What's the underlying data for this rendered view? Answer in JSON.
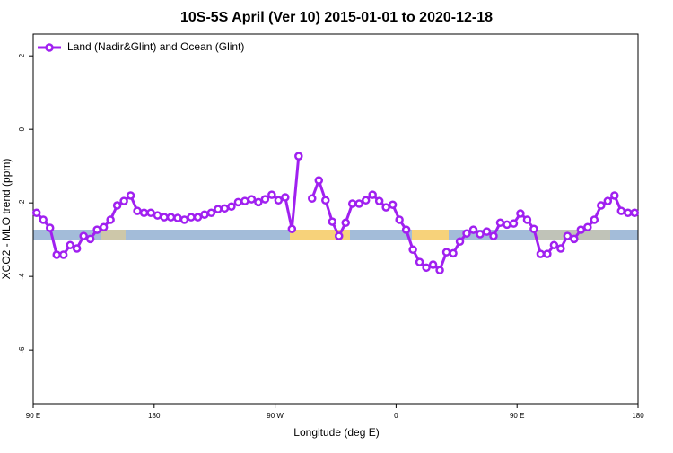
{
  "chart_data": {
    "type": "line",
    "title": "10S-5S April (Ver 10)   2015-01-01 to 2020-12-18",
    "x_label": "Longitude (deg E)",
    "y_label": "XCO2 - MLO trend (ppm)",
    "xlim": [
      90,
      540
    ],
    "ylim": [
      -7.46,
      2.59
    ],
    "xticks": [
      {
        "value": 90,
        "label": "90 E"
      },
      180,
      {
        "value": 270,
        "label": "90 W"
      },
      {
        "value": 360,
        "label": "0"
      },
      {
        "value": 450,
        "label": "90 E"
      },
      {
        "value": 540,
        "label": "180"
      }
    ],
    "yticks": [
      2,
      0,
      -2,
      -4,
      -6
    ],
    "legend": "top-left",
    "x": [
      92.5,
      97.5,
      102.5,
      107.5,
      112.5,
      117.5,
      122.5,
      127.5,
      132.5,
      137.5,
      142.5,
      147.5,
      152.5,
      157.5,
      162.5,
      167.5,
      172.5,
      177.5,
      182.5,
      187.5,
      192.5,
      197.5,
      202.5,
      207.5,
      212.5,
      217.5,
      222.5,
      227.5,
      232.5,
      237.5,
      242.5,
      247.5,
      252.5,
      257.5,
      262.5,
      267.5,
      272.5,
      277.5,
      282.5,
      287.5,
      292.5,
      297.5,
      302.5,
      307.5,
      312.5,
      317.5,
      322.5,
      327.5,
      332.5,
      337.5,
      342.5,
      347.5,
      352.5,
      357.5,
      362.5,
      367.5,
      372.5,
      377.5,
      382.5,
      387.5,
      392.5,
      397.5,
      402.5,
      407.5,
      412.5,
      417.5,
      422.5,
      427.5,
      432.5,
      437.5,
      442.5,
      447.5,
      452.5,
      457.5,
      462.5,
      467.5,
      472.5,
      477.5,
      482.5,
      487.5,
      492.5,
      497.5,
      502.5,
      507.5,
      512.5,
      517.5,
      522.5,
      527.5,
      532.5,
      537.5
    ],
    "series": [
      {
        "name": "Land (Nadir&Glint) and Ocean (Glint)",
        "color": "#a020f0",
        "values": [
          -2.27,
          -2.46,
          -2.68,
          -3.41,
          -3.41,
          -3.15,
          -3.24,
          -2.9,
          -2.98,
          -2.73,
          -2.66,
          -2.46,
          -2.07,
          -1.95,
          -1.8,
          -2.22,
          -2.27,
          -2.27,
          -2.34,
          -2.39,
          -2.39,
          -2.41,
          -2.46,
          -2.39,
          -2.39,
          -2.32,
          -2.27,
          -2.17,
          -2.15,
          -2.1,
          -1.98,
          -1.95,
          -1.9,
          -1.98,
          -1.9,
          -1.78,
          -1.93,
          -1.85,
          -2.71,
          -0.73,
          null,
          -1.88,
          -1.39,
          -1.93,
          -2.51,
          -2.9,
          -2.54,
          -2.02,
          -2.02,
          -1.93,
          -1.78,
          -1.95,
          -2.12,
          -2.05,
          -2.46,
          -2.73,
          -3.27,
          -3.61,
          -3.76,
          -3.68,
          -3.83,
          -3.34,
          -3.37,
          -3.05,
          -2.83,
          -2.73,
          -2.85,
          -2.78,
          -2.9,
          -2.54,
          -2.59,
          -2.56,
          -2.29,
          -2.46,
          -2.71,
          -3.39,
          -3.39,
          -3.15,
          -3.24,
          -2.9,
          -2.98,
          -2.73,
          -2.66,
          -2.46,
          -2.07,
          -1.95,
          -1.8,
          -2.22,
          -2.27,
          -2.27
        ]
      }
    ]
  }
}
